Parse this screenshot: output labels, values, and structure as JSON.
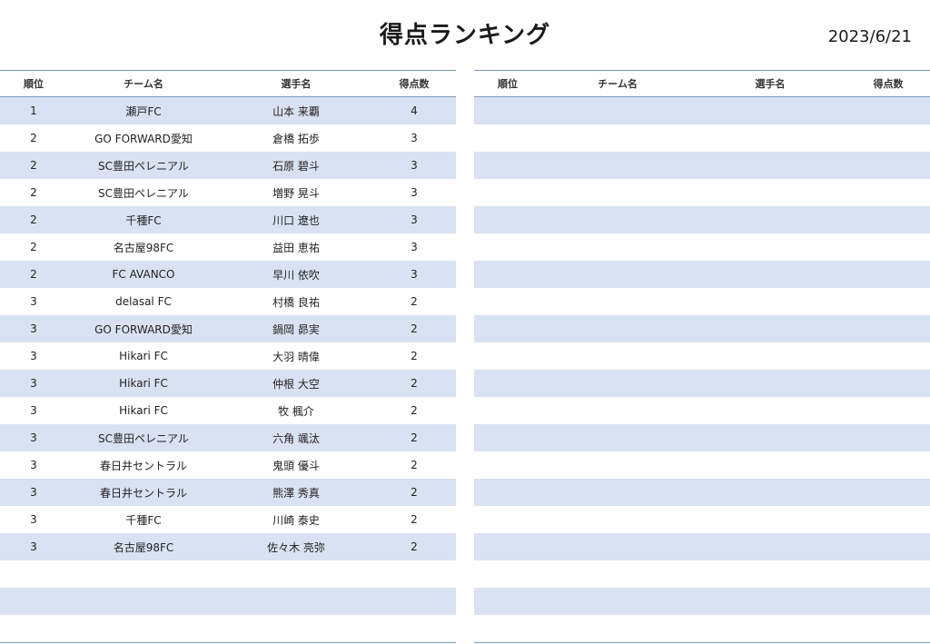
{
  "title": "得点ランキング",
  "date": "2023/6/21",
  "headers": {
    "rank": "順位",
    "team": "チーム名",
    "player": "選手名",
    "goals": "得点数"
  },
  "rows": [
    {
      "rank": "1",
      "team": "瀬戸FC",
      "player": "山本 来覇",
      "goals": "4"
    },
    {
      "rank": "2",
      "team": "GO FORWARD愛知",
      "player": "倉橋 拓歩",
      "goals": "3"
    },
    {
      "rank": "2",
      "team": "SC豊田ペレニアル",
      "player": "石原 碧斗",
      "goals": "3"
    },
    {
      "rank": "2",
      "team": "SC豊田ペレニアル",
      "player": "増野 晃斗",
      "goals": "3"
    },
    {
      "rank": "2",
      "team": "千種FC",
      "player": "川口 遼也",
      "goals": "3"
    },
    {
      "rank": "2",
      "team": "名古屋98FC",
      "player": "益田 恵祐",
      "goals": "3"
    },
    {
      "rank": "2",
      "team": "FC AVANCO",
      "player": "早川 依吹",
      "goals": "3"
    },
    {
      "rank": "3",
      "team": "delasal FC",
      "player": "村橋 良祐",
      "goals": "2"
    },
    {
      "rank": "3",
      "team": "GO FORWARD愛知",
      "player": "鍋岡 昴実",
      "goals": "2"
    },
    {
      "rank": "3",
      "team": "Hikari FC",
      "player": "大羽 晴偉",
      "goals": "2"
    },
    {
      "rank": "3",
      "team": "Hikari FC",
      "player": "仲根 大空",
      "goals": "2"
    },
    {
      "rank": "3",
      "team": "Hikari FC",
      "player": "牧 楓介",
      "goals": "2"
    },
    {
      "rank": "3",
      "team": "SC豊田ペレニアル",
      "player": "六角 颯汰",
      "goals": "2"
    },
    {
      "rank": "3",
      "team": "春日井セントラル",
      "player": "鬼頭 優斗",
      "goals": "2"
    },
    {
      "rank": "3",
      "team": "春日井セントラル",
      "player": "熊澤 秀真",
      "goals": "2"
    },
    {
      "rank": "3",
      "team": "千種FC",
      "player": "川崎 泰史",
      "goals": "2"
    },
    {
      "rank": "3",
      "team": "名古屋98FC",
      "player": "佐々木 亮弥",
      "goals": "2"
    }
  ],
  "emptyRowsLeft": 3,
  "emptyRowsRight": 20
}
